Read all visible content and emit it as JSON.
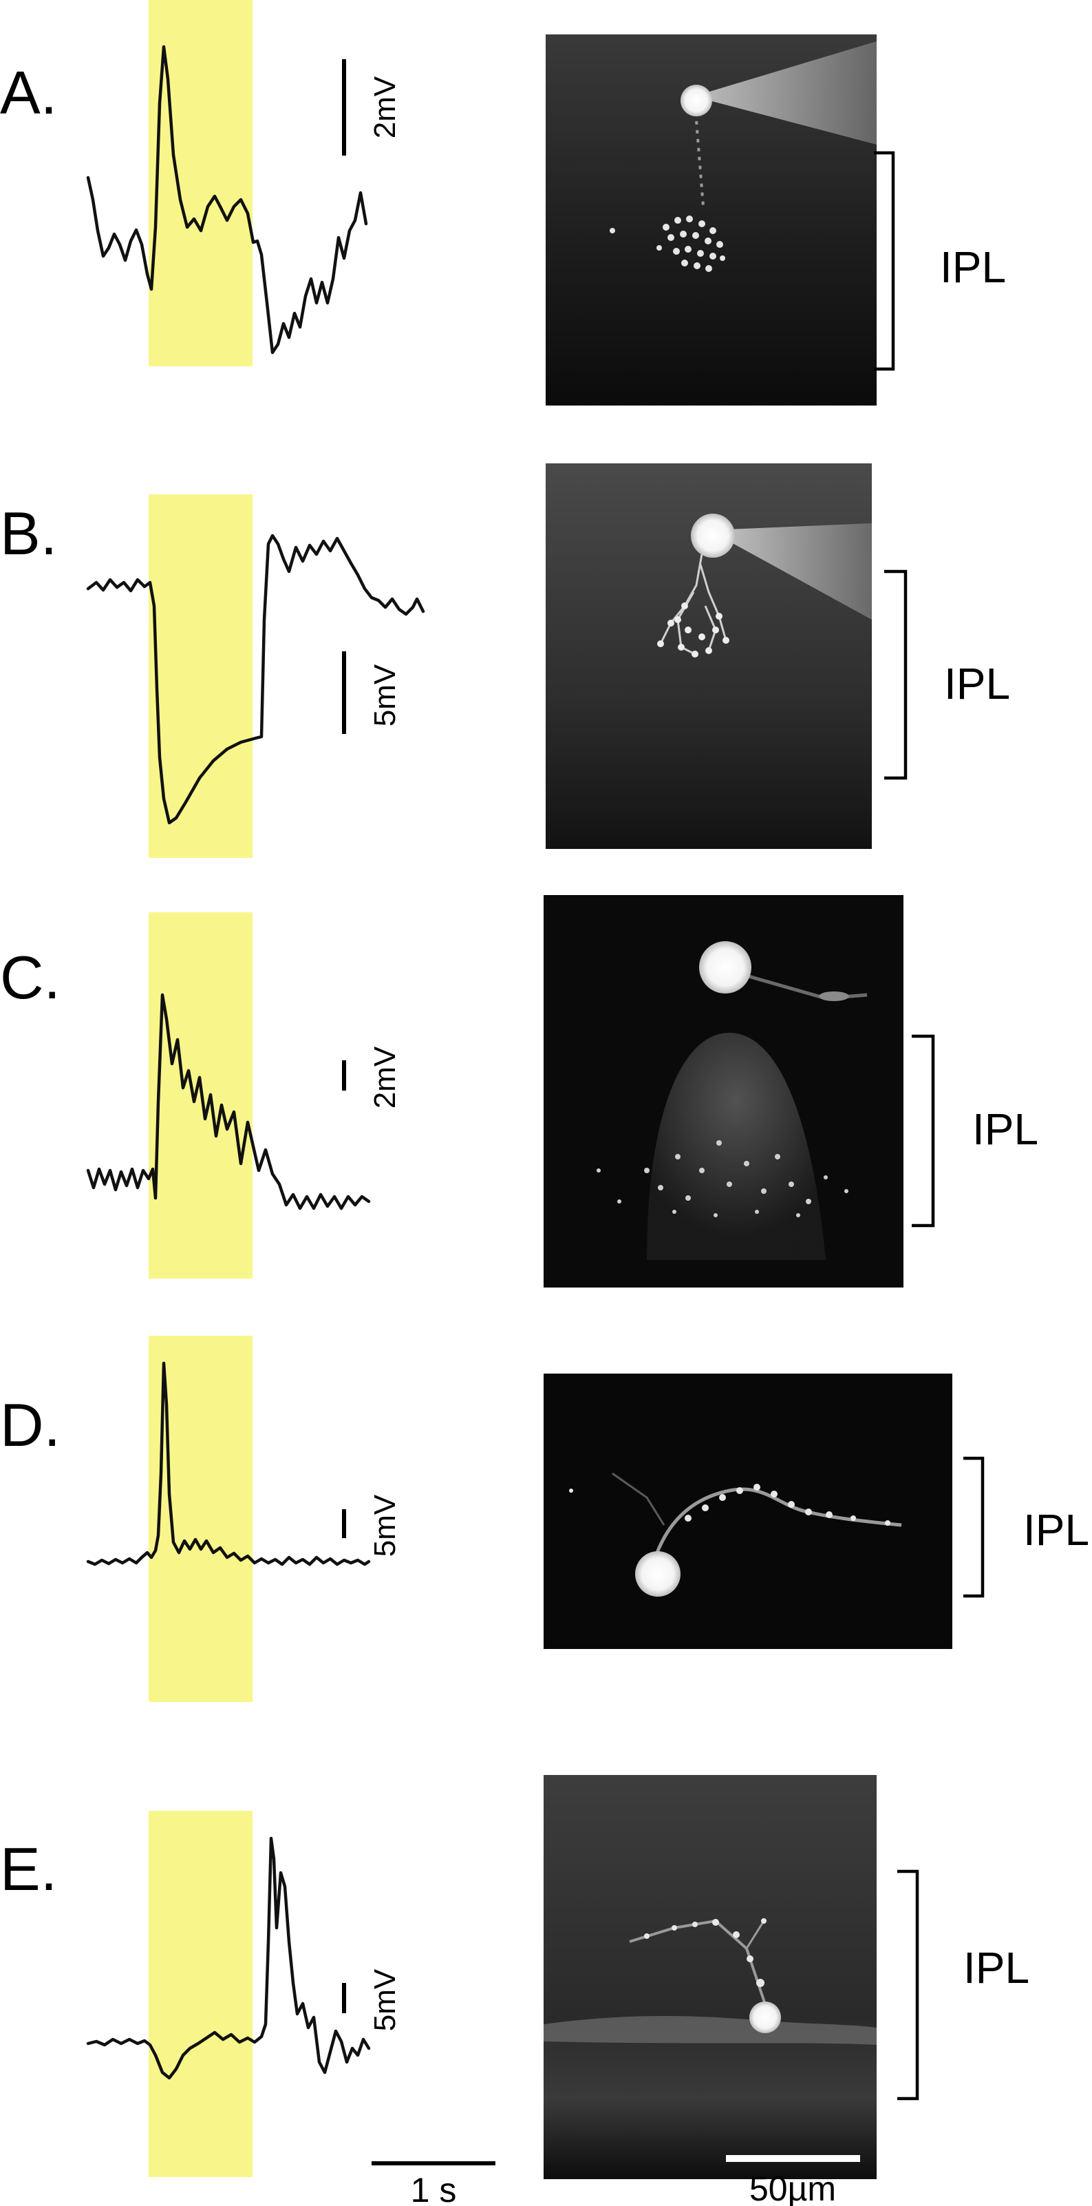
{
  "panels": [
    {
      "label": "A.",
      "mv_scale": "2mV",
      "region": "IPL"
    },
    {
      "label": "B.",
      "mv_scale": "5mV",
      "region": "IPL"
    },
    {
      "label": "C.",
      "mv_scale": "2mV",
      "region": "IPL"
    },
    {
      "label": "D.",
      "mv_scale": "5mV",
      "region": "IPL"
    },
    {
      "label": "E.",
      "mv_scale": "5mV",
      "region": "IPL"
    }
  ],
  "time_scale": "1 s",
  "length_scale": "50µm",
  "colors": {
    "stimulus": "#f8f68a",
    "trace": "#111111",
    "micrograph_bg": "#0c0c0c"
  }
}
